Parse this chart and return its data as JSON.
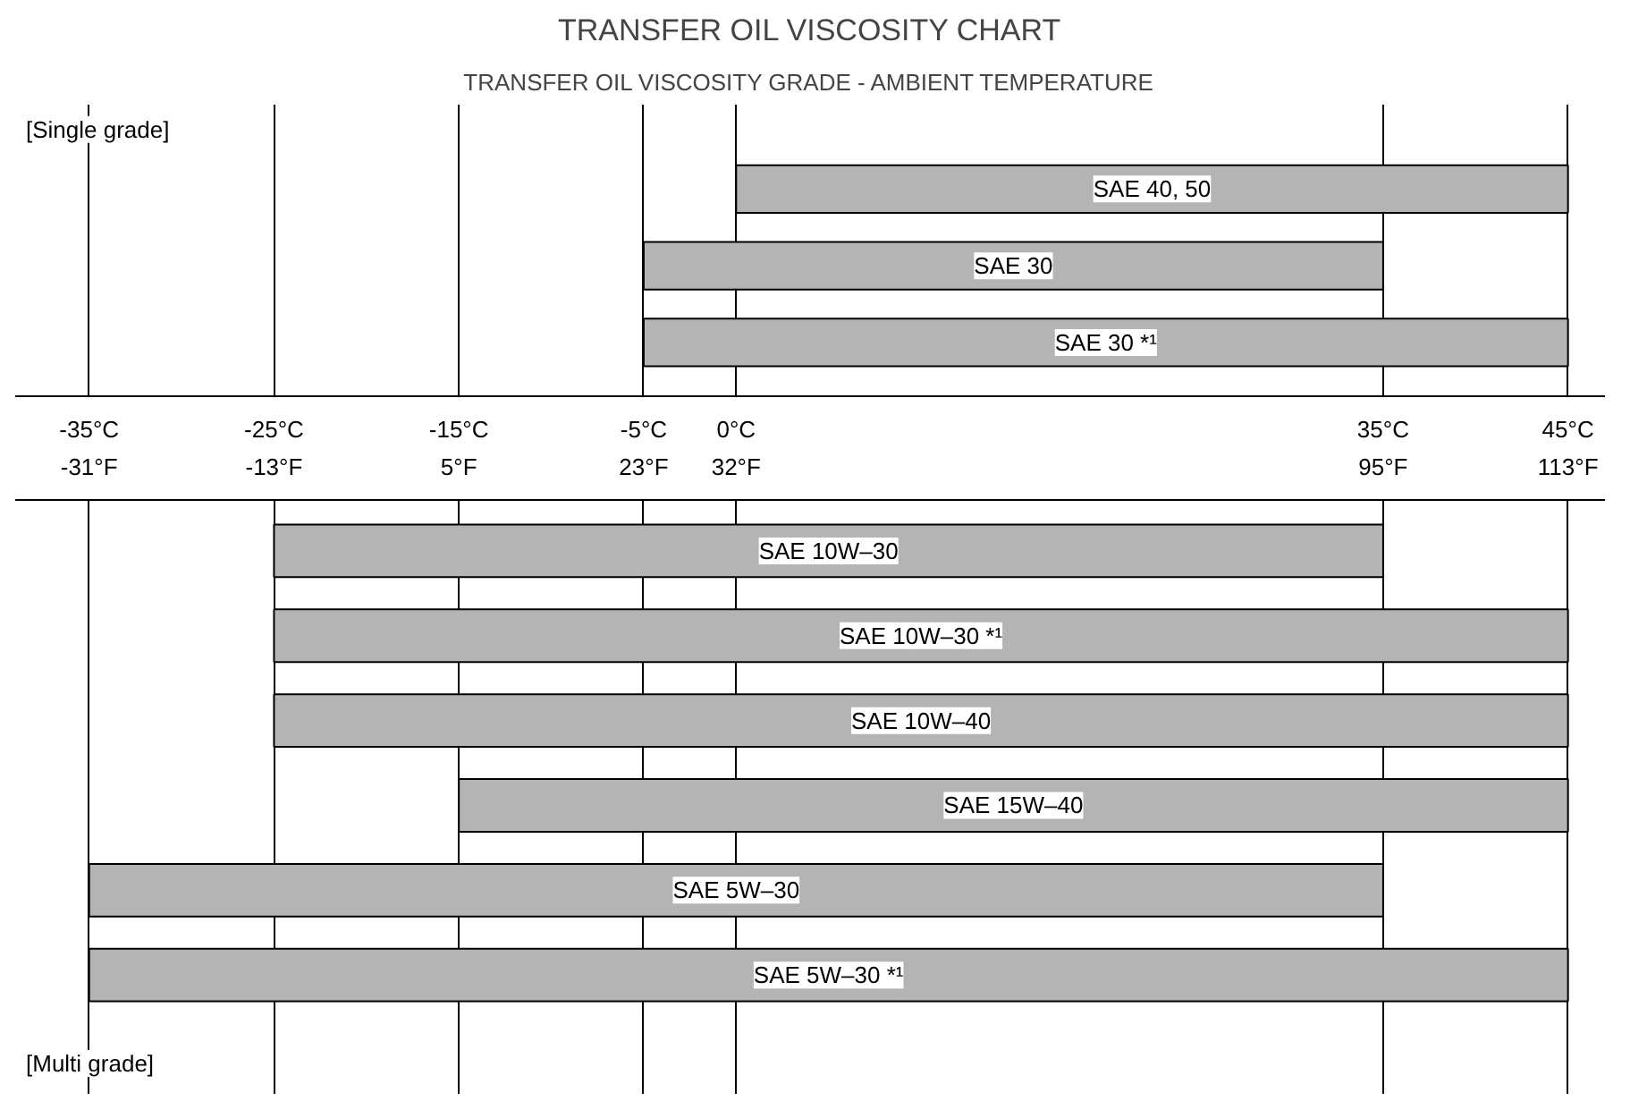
{
  "chart_data": [
    {
      "type": "bar",
      "orientation": "horizontal",
      "title": "TRANSFER OIL VISCOSITY CHART",
      "subtitle": "TRANSFER OIL VISCOSITY GRADE - AMBIENT TEMPERATURE",
      "annotations": [
        "[Single grade]"
      ],
      "categories": [
        "SAE 40, 50",
        "SAE 30",
        "SAE 30 *¹"
      ],
      "base": [
        0,
        -5,
        -5
      ],
      "values": [
        45,
        40,
        50
      ],
      "color": "#b4b4b4",
      "xlim": [
        -39,
        47
      ],
      "xticks": [
        {
          "value": -35,
          "label": "-35°C"
        },
        {
          "value": -25,
          "label": "-25°C"
        },
        {
          "value": -15,
          "label": "-15°C"
        },
        {
          "value": -5,
          "label": "-5°C"
        },
        {
          "value": 0,
          "label": "0°C"
        },
        {
          "value": 35,
          "label": "35°C"
        },
        {
          "value": 45,
          "label": "45°C"
        }
      ],
      "grid": "x",
      "tick_labels": "x"
    },
    {
      "type": "bar",
      "orientation": "horizontal",
      "annotations": [
        "[Multi grade]"
      ],
      "categories": [
        "SAE 10W–30",
        "SAE 10W–30 *¹",
        "SAE 10W–40",
        "SAE 15W–40",
        "SAE 5W–30",
        "SAE 5W–30 *¹"
      ],
      "base": [
        -13,
        -13,
        -13,
        5,
        -31,
        -31
      ],
      "values": [
        108,
        126,
        126,
        108,
        126,
        144
      ],
      "color": "#b4b4b4",
      "xlim": [
        -38.2,
        116.6
      ],
      "xticks": [
        {
          "value": -31,
          "label": "-31°F"
        },
        {
          "value": -13,
          "label": "-13°F"
        },
        {
          "value": 5,
          "label": "5°F"
        },
        {
          "value": 23,
          "label": "23°F"
        },
        {
          "value": 32,
          "label": "32°F"
        },
        {
          "value": 95,
          "label": "95°F"
        },
        {
          "value": 113,
          "label": "113°F"
        }
      ],
      "grid": "x",
      "tick_labels": "x"
    }
  ]
}
